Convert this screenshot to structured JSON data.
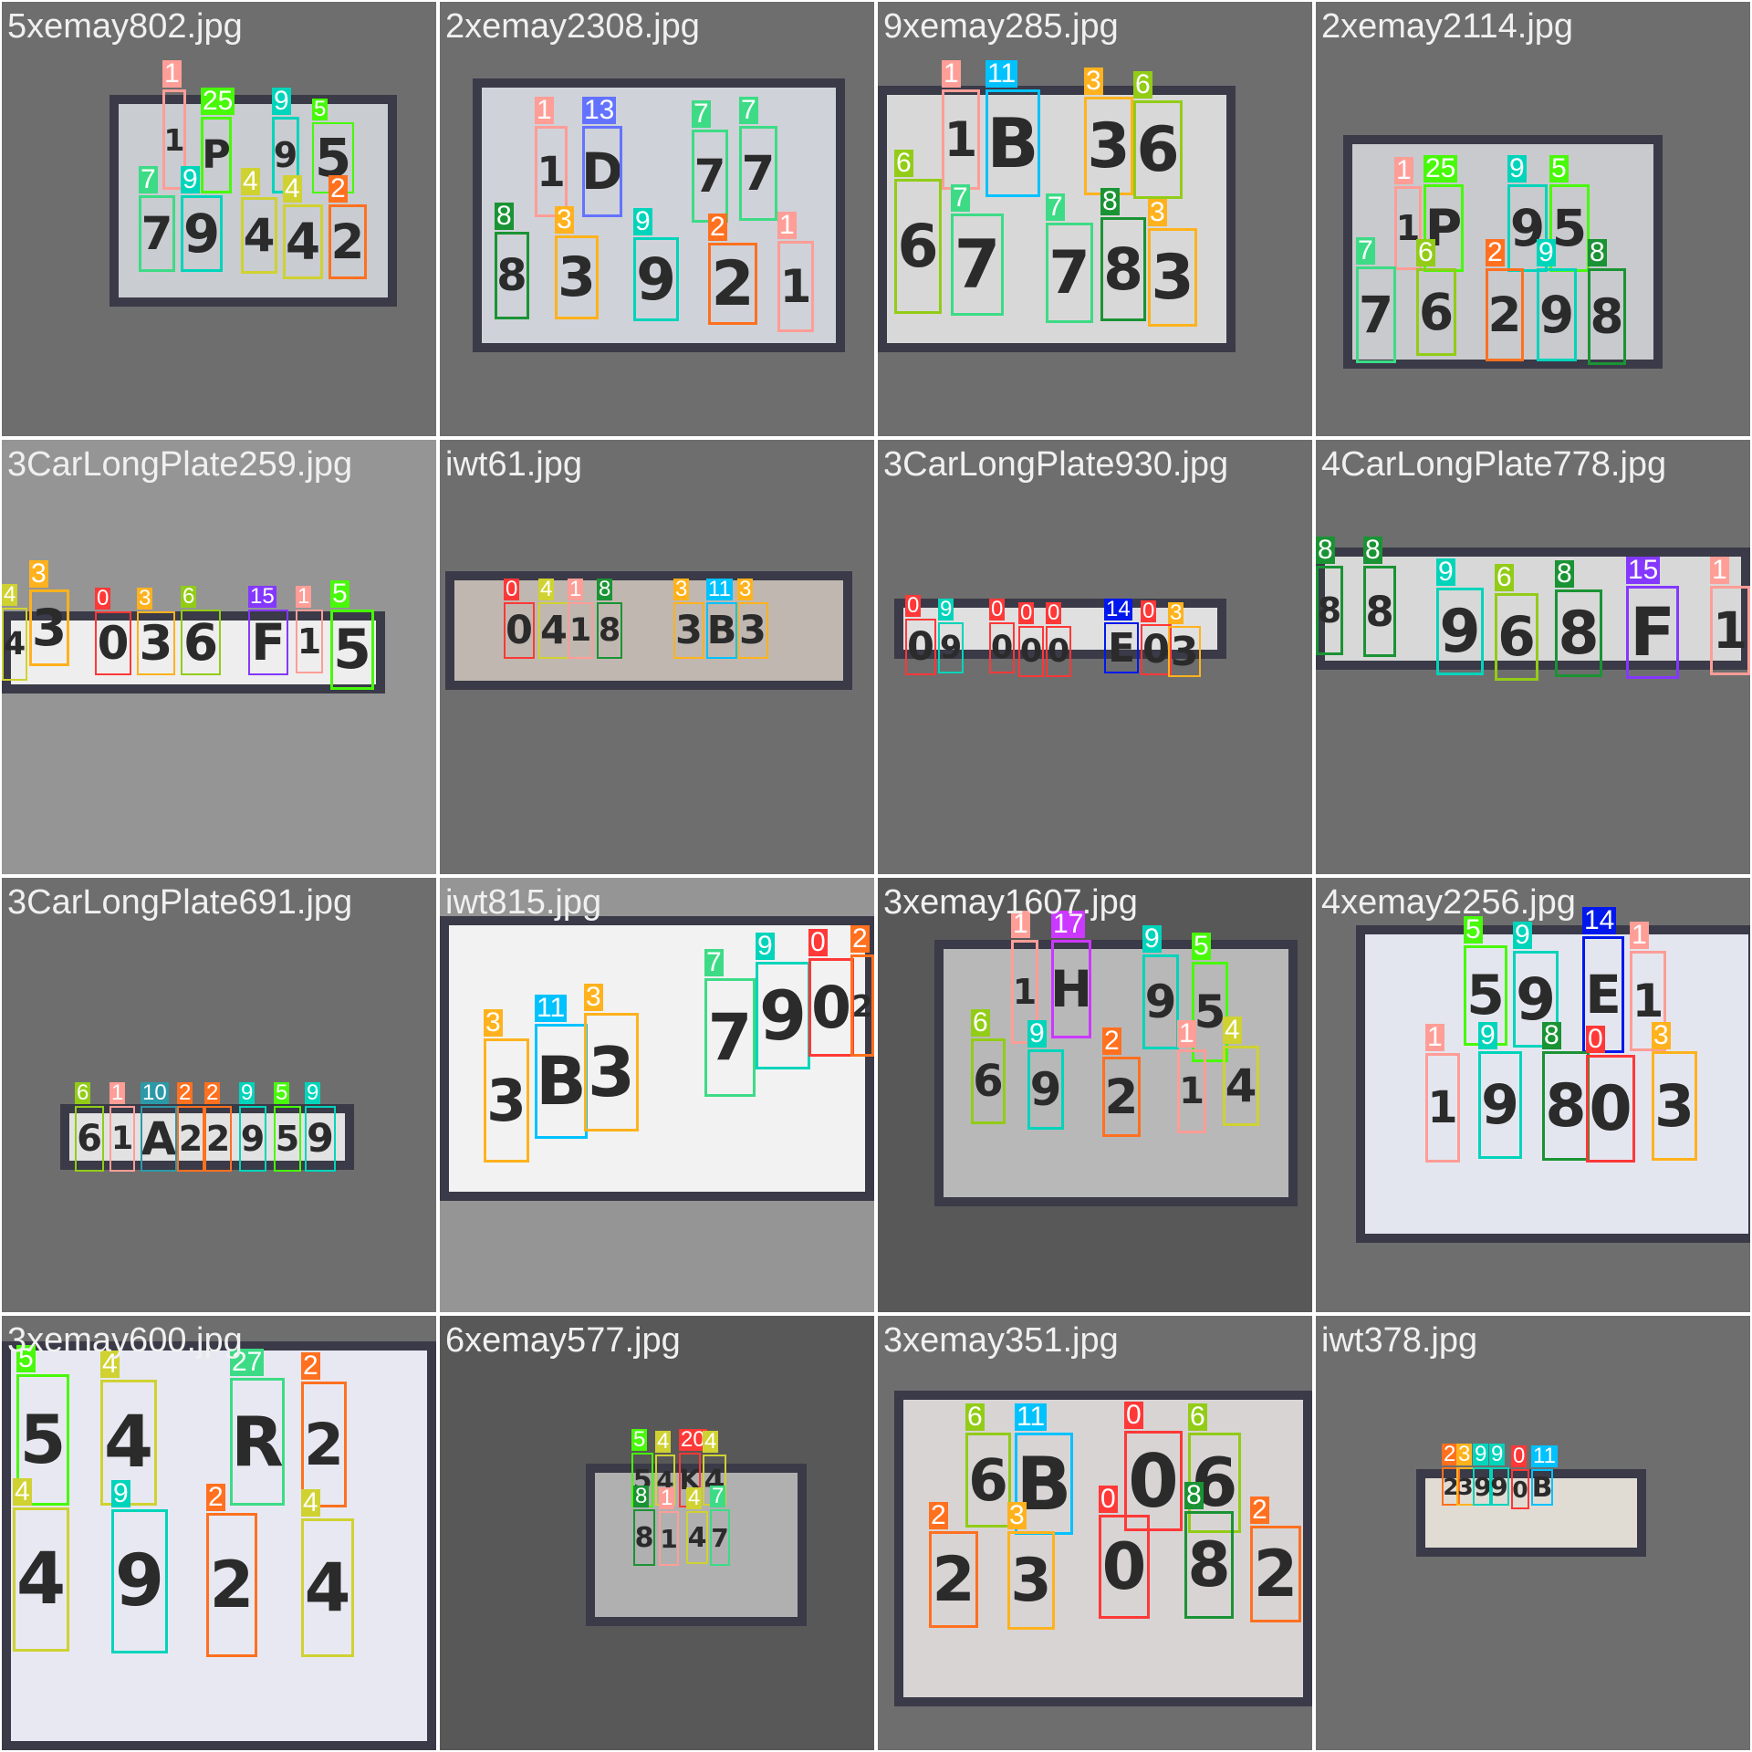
{
  "grid": {
    "background": "#ffffff",
    "class_colors": {
      "0": "#ff3838",
      "1": "#ff9d97",
      "2": "#ff701f",
      "3": "#ffb21d",
      "4": "#cfd231",
      "5": "#48f90a",
      "6": "#92cc17",
      "7": "#3ddb86",
      "8": "#1a9334",
      "9": "#00d4bb",
      "10": "#2c99a8",
      "11": "#00c2ff",
      "13": "#6473ff",
      "14": "#0018ec",
      "15": "#8438ff",
      "17": "#cb38ff",
      "20": "#ff3838",
      "25": "#48f90a",
      "27": "#3ddb86"
    },
    "tiles": [
      {
        "filename": "5xemay802.jpg",
        "tile_bg": "#6e6e6e",
        "plate_color": "#c9ccd0",
        "detections": [
          {
            "class": "1",
            "char": "1"
          },
          {
            "class": "25",
            "char": "P"
          },
          {
            "class": "9",
            "char": "9"
          },
          {
            "class": "5",
            "char": "5"
          },
          {
            "class": "7",
            "char": "7"
          },
          {
            "class": "9",
            "char": "9"
          },
          {
            "class": "4",
            "char": "4"
          },
          {
            "class": "4",
            "char": "4"
          },
          {
            "class": "2",
            "char": "2"
          }
        ]
      },
      {
        "filename": "2xemay2308.jpg",
        "tile_bg": "#6e6e6e",
        "plate_color": "#cfd2d8",
        "detections": [
          {
            "class": "1",
            "char": "1"
          },
          {
            "class": "13",
            "char": "D"
          },
          {
            "class": "7",
            "char": "7"
          },
          {
            "class": "7",
            "char": "7"
          },
          {
            "class": "8",
            "char": "8"
          },
          {
            "class": "3",
            "char": "3"
          },
          {
            "class": "9",
            "char": "9"
          },
          {
            "class": "2",
            "char": "2"
          },
          {
            "class": "1",
            "char": "1"
          }
        ]
      },
      {
        "filename": "9xemay285.jpg",
        "tile_bg": "#6e6e6e",
        "plate_color": "#d8d8d8",
        "detections": [
          {
            "class": "1",
            "char": "1"
          },
          {
            "class": "11",
            "char": "B"
          },
          {
            "class": "3",
            "char": "3"
          },
          {
            "class": "6",
            "char": "6"
          },
          {
            "class": "6",
            "char": "6"
          },
          {
            "class": "7",
            "char": "7"
          },
          {
            "class": "7",
            "char": "7"
          },
          {
            "class": "8",
            "char": "8"
          },
          {
            "class": "3",
            "char": "3"
          }
        ]
      },
      {
        "filename": "2xemay2114.jpg",
        "tile_bg": "#6e6e6e",
        "plate_color": "#c8cacd",
        "detections": [
          {
            "class": "1",
            "char": "1"
          },
          {
            "class": "25",
            "char": "P"
          },
          {
            "class": "9",
            "char": "9"
          },
          {
            "class": "5",
            "char": "5"
          },
          {
            "class": "7",
            "char": "7"
          },
          {
            "class": "6",
            "char": "6"
          },
          {
            "class": "2",
            "char": "2"
          },
          {
            "class": "9",
            "char": "9"
          },
          {
            "class": "8",
            "char": "8"
          }
        ]
      },
      {
        "filename": "3CarLongPlate259.jpg",
        "tile_bg": "#959595",
        "plate_color": "#eeeeee",
        "detections": [
          {
            "class": "4",
            "char": "4"
          },
          {
            "class": "3",
            "char": "3"
          },
          {
            "class": "0",
            "char": "0"
          },
          {
            "class": "3",
            "char": "3"
          },
          {
            "class": "6",
            "char": "6"
          },
          {
            "class": "15",
            "char": "F"
          },
          {
            "class": "1",
            "char": "1"
          },
          {
            "class": "5",
            "char": "5"
          }
        ]
      },
      {
        "filename": "iwt61.jpg",
        "tile_bg": "#6e6e6e",
        "plate_color": "#c0b8b0",
        "detections": [
          {
            "class": "0",
            "char": "0"
          },
          {
            "class": "4",
            "char": "4"
          },
          {
            "class": "1",
            "char": "1"
          },
          {
            "class": "8",
            "char": "8"
          },
          {
            "class": "3",
            "char": "3"
          },
          {
            "class": "11",
            "char": "B"
          },
          {
            "class": "3",
            "char": "3"
          }
        ]
      },
      {
        "filename": "3CarLongPlate930.jpg",
        "tile_bg": "#6e6e6e",
        "plate_color": "#e0e0e0",
        "detections": [
          {
            "class": "0",
            "char": "0"
          },
          {
            "class": "9",
            "char": "9"
          },
          {
            "class": "0",
            "char": "0"
          },
          {
            "class": "0",
            "char": "0"
          },
          {
            "class": "0",
            "char": "0"
          },
          {
            "class": "14",
            "char": "E"
          },
          {
            "class": "0",
            "char": "0"
          },
          {
            "class": "3",
            "char": "3"
          }
        ]
      },
      {
        "filename": "4CarLongPlate778.jpg",
        "tile_bg": "#6e6e6e",
        "plate_color": "#d8d8d8",
        "detections": [
          {
            "class": "8",
            "char": "8"
          },
          {
            "class": "8",
            "char": "8"
          },
          {
            "class": "9",
            "char": "9"
          },
          {
            "class": "6",
            "char": "6"
          },
          {
            "class": "8",
            "char": "8"
          },
          {
            "class": "15",
            "char": "F"
          },
          {
            "class": "1",
            "char": "1"
          }
        ]
      },
      {
        "filename": "3CarLongPlate691.jpg",
        "tile_bg": "#6e6e6e",
        "plate_color": "#e2e2e2",
        "detections": [
          {
            "class": "6",
            "char": "6"
          },
          {
            "class": "1",
            "char": "1"
          },
          {
            "class": "10",
            "char": "A"
          },
          {
            "class": "2",
            "char": "2"
          },
          {
            "class": "2",
            "char": "2"
          },
          {
            "class": "9",
            "char": "9"
          },
          {
            "class": "5",
            "char": "5"
          },
          {
            "class": "9",
            "char": "9"
          }
        ]
      },
      {
        "filename": "iwt815.jpg",
        "tile_bg": "#959595",
        "plate_color": "#f2f2f2",
        "detections": [
          {
            "class": "3",
            "char": "3"
          },
          {
            "class": "11",
            "char": "B"
          },
          {
            "class": "3",
            "char": "3"
          },
          {
            "class": "7",
            "char": "7"
          },
          {
            "class": "9",
            "char": "9"
          },
          {
            "class": "0",
            "char": "0"
          },
          {
            "class": "2",
            "char": "2"
          }
        ]
      },
      {
        "filename": "3xemay1607.jpg",
        "tile_bg": "#585858",
        "plate_color": "#b8b8b8",
        "detections": [
          {
            "class": "1",
            "char": "1"
          },
          {
            "class": "17",
            "char": "H"
          },
          {
            "class": "9",
            "char": "9"
          },
          {
            "class": "5",
            "char": "5"
          },
          {
            "class": "6",
            "char": "6"
          },
          {
            "class": "9",
            "char": "9"
          },
          {
            "class": "2",
            "char": "2"
          },
          {
            "class": "1",
            "char": "1"
          },
          {
            "class": "4",
            "char": "4"
          }
        ]
      },
      {
        "filename": "4xemay2256.jpg",
        "tile_bg": "#6e6e6e",
        "plate_color": "#e4e6ef",
        "detections": [
          {
            "class": "5",
            "char": "5"
          },
          {
            "class": "9",
            "char": "9"
          },
          {
            "class": "14",
            "char": "E"
          },
          {
            "class": "1",
            "char": "1"
          },
          {
            "class": "1",
            "char": "1"
          },
          {
            "class": "9",
            "char": "9"
          },
          {
            "class": "8",
            "char": "8"
          },
          {
            "class": "0",
            "char": "0"
          },
          {
            "class": "3",
            "char": "3"
          }
        ]
      },
      {
        "filename": "3xemay600.jpg",
        "tile_bg": "#6e6e6e",
        "plate_color": "#e8e8f2",
        "detections": [
          {
            "class": "5",
            "char": "5"
          },
          {
            "class": "4",
            "char": "4"
          },
          {
            "class": "27",
            "char": "R"
          },
          {
            "class": "2",
            "char": "2"
          },
          {
            "class": "4",
            "char": "4"
          },
          {
            "class": "9",
            "char": "9"
          },
          {
            "class": "2",
            "char": "2"
          },
          {
            "class": "4",
            "char": "4"
          }
        ]
      },
      {
        "filename": "6xemay577.jpg",
        "tile_bg": "#585858",
        "plate_color": "#b0b0b0",
        "detections": [
          {
            "class": "5",
            "char": "5"
          },
          {
            "class": "4",
            "char": "4"
          },
          {
            "class": "20",
            "char": "K"
          },
          {
            "class": "4",
            "char": "4"
          },
          {
            "class": "8",
            "char": "8"
          },
          {
            "class": "1",
            "char": "1"
          },
          {
            "class": "4",
            "char": "4"
          },
          {
            "class": "7",
            "char": "7"
          }
        ]
      },
      {
        "filename": "3xemay351.jpg",
        "tile_bg": "#6e6e6e",
        "plate_color": "#d8d4d4",
        "detections": [
          {
            "class": "6",
            "char": "6"
          },
          {
            "class": "11",
            "char": "B"
          },
          {
            "class": "0",
            "char": "0"
          },
          {
            "class": "6",
            "char": "6"
          },
          {
            "class": "2",
            "char": "2"
          },
          {
            "class": "3",
            "char": "3"
          },
          {
            "class": "0",
            "char": "0"
          },
          {
            "class": "8",
            "char": "8"
          },
          {
            "class": "2",
            "char": "2"
          }
        ]
      },
      {
        "filename": "iwt378.jpg",
        "tile_bg": "#6e6e6e",
        "plate_color": "#e0dcd4",
        "detections": [
          {
            "class": "2",
            "char": "2"
          },
          {
            "class": "3",
            "char": "3"
          },
          {
            "class": "9",
            "char": "9"
          },
          {
            "class": "9",
            "char": "9"
          },
          {
            "class": "0",
            "char": "0"
          },
          {
            "class": "11",
            "char": "B"
          }
        ]
      }
    ]
  }
}
